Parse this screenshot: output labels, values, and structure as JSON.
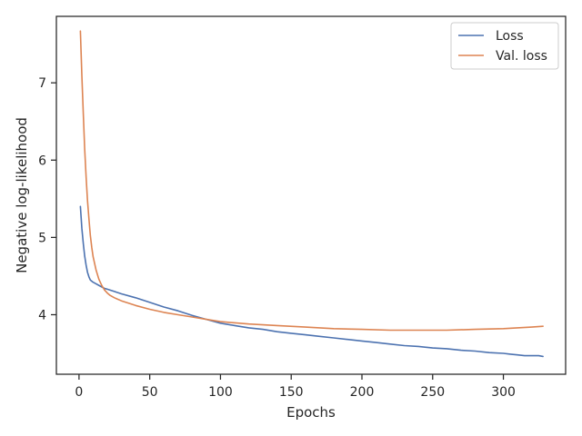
{
  "chart_data": {
    "type": "line",
    "xlabel": "Epochs",
    "ylabel": "Negative log-likelihood",
    "xlim": [
      -16,
      344
    ],
    "ylim": [
      3.23,
      7.86
    ],
    "xticks": [
      0,
      50,
      100,
      150,
      200,
      250,
      300
    ],
    "yticks": [
      4,
      5,
      6,
      7
    ],
    "grid": false,
    "legend_position": "top-right",
    "series": [
      {
        "name": "Loss",
        "color": "#4c72b0",
        "x": [
          1,
          2,
          3,
          4,
          5,
          6,
          7,
          8,
          10,
          12,
          15,
          18,
          20,
          25,
          30,
          40,
          50,
          60,
          70,
          80,
          90,
          100,
          110,
          120,
          130,
          140,
          150,
          160,
          170,
          180,
          190,
          200,
          210,
          220,
          230,
          240,
          250,
          260,
          270,
          280,
          290,
          300,
          305,
          310,
          315,
          320,
          325,
          328
        ],
        "values": [
          5.4,
          5.12,
          4.92,
          4.76,
          4.64,
          4.55,
          4.49,
          4.45,
          4.42,
          4.4,
          4.37,
          4.34,
          4.33,
          4.3,
          4.27,
          4.22,
          4.16,
          4.1,
          4.05,
          3.99,
          3.94,
          3.89,
          3.86,
          3.83,
          3.81,
          3.78,
          3.76,
          3.74,
          3.72,
          3.7,
          3.68,
          3.66,
          3.64,
          3.62,
          3.6,
          3.59,
          3.57,
          3.56,
          3.54,
          3.53,
          3.51,
          3.5,
          3.49,
          3.48,
          3.47,
          3.47,
          3.47,
          3.46
        ]
      },
      {
        "name": "Val. loss",
        "color": "#dd8452",
        "x": [
          1,
          2,
          3,
          4,
          5,
          6,
          7,
          8,
          9,
          10,
          12,
          14,
          16,
          18,
          20,
          22,
          25,
          30,
          40,
          50,
          60,
          70,
          80,
          90,
          100,
          120,
          140,
          160,
          180,
          200,
          220,
          240,
          260,
          280,
          300,
          310,
          320,
          328
        ],
        "values": [
          7.67,
          7.1,
          6.6,
          6.15,
          5.78,
          5.48,
          5.24,
          5.03,
          4.87,
          4.75,
          4.58,
          4.46,
          4.38,
          4.32,
          4.28,
          4.25,
          4.22,
          4.18,
          4.12,
          4.07,
          4.03,
          4.0,
          3.97,
          3.94,
          3.91,
          3.88,
          3.86,
          3.84,
          3.82,
          3.81,
          3.8,
          3.8,
          3.8,
          3.81,
          3.82,
          3.83,
          3.84,
          3.85
        ]
      }
    ]
  }
}
